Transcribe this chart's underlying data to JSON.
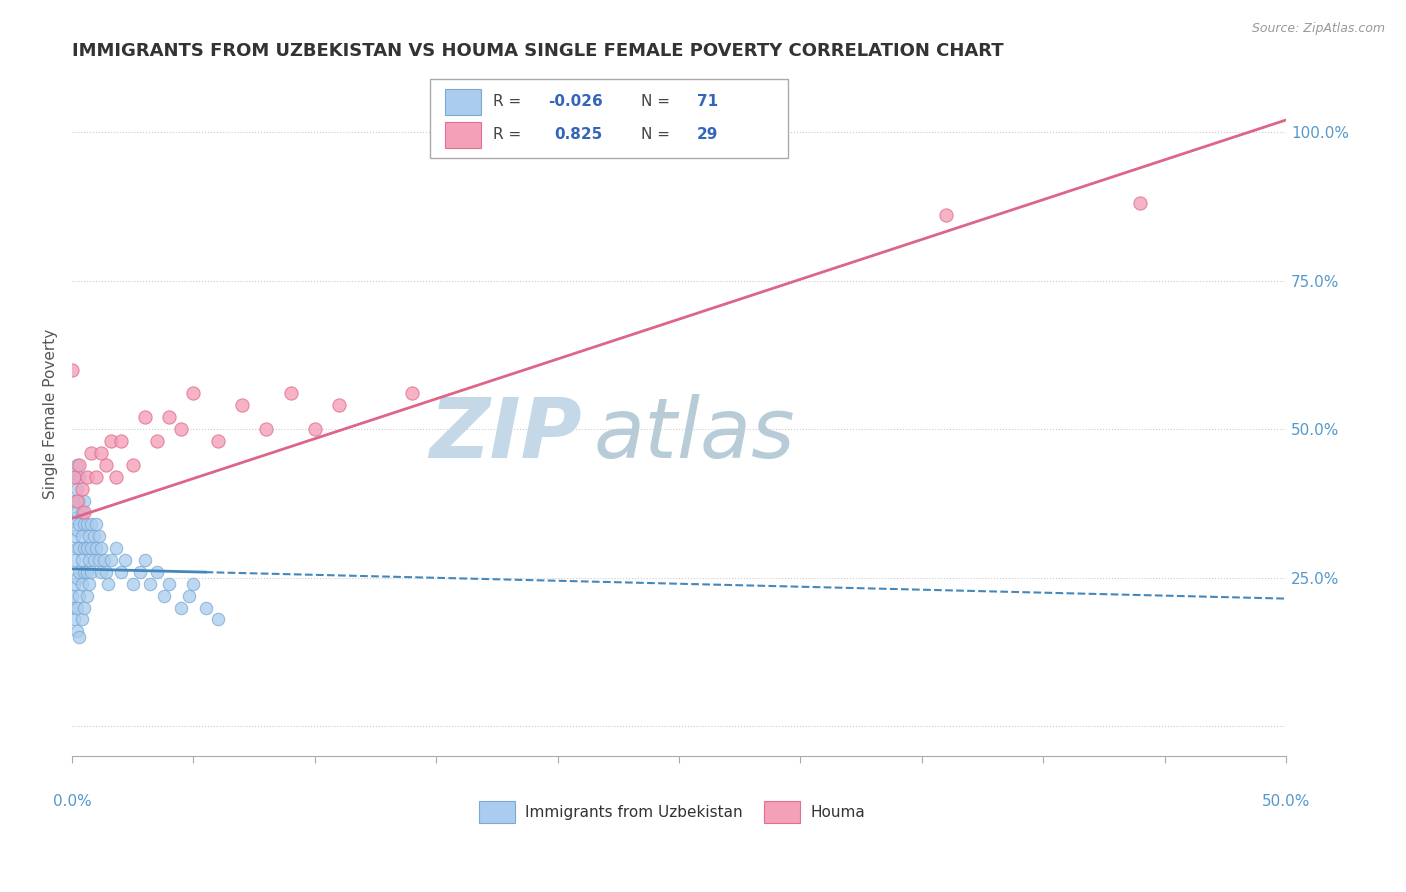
{
  "title": "IMMIGRANTS FROM UZBEKISTAN VS HOUMA SINGLE FEMALE POVERTY CORRELATION CHART",
  "source": "Source: ZipAtlas.com",
  "ylabel": "Single Female Poverty",
  "legend_blue_label": "Immigrants from Uzbekistan",
  "legend_pink_label": "Houma",
  "R_blue": -0.026,
  "N_blue": 71,
  "R_pink": 0.825,
  "N_pink": 29,
  "blue_color": "#aaccee",
  "blue_edge": "#7aaad4",
  "pink_color": "#f4a0b8",
  "pink_edge": "#e07090",
  "blue_line_color": "#4488bb",
  "pink_line_color": "#dd6688",
  "watermark_zip": "ZIP",
  "watermark_atlas": "atlas",
  "watermark_color_zip": "#c5d8e8",
  "watermark_color_atlas": "#b8ccd8",
  "xlim": [
    0.0,
    0.5
  ],
  "ylim": [
    -0.05,
    1.1
  ],
  "right_yticks": [
    0.0,
    0.25,
    0.5,
    0.75,
    1.0
  ],
  "right_yticklabels": [
    "",
    "25.0%",
    "50.0%",
    "75.0%",
    "100.0%"
  ],
  "blue_scatter_x": [
    0.0,
    0.0,
    0.001,
    0.001,
    0.001,
    0.001,
    0.001,
    0.001,
    0.001,
    0.002,
    0.002,
    0.002,
    0.002,
    0.002,
    0.002,
    0.002,
    0.002,
    0.003,
    0.003,
    0.003,
    0.003,
    0.003,
    0.003,
    0.003,
    0.004,
    0.004,
    0.004,
    0.004,
    0.004,
    0.005,
    0.005,
    0.005,
    0.005,
    0.005,
    0.006,
    0.006,
    0.006,
    0.006,
    0.007,
    0.007,
    0.007,
    0.008,
    0.008,
    0.008,
    0.009,
    0.009,
    0.01,
    0.01,
    0.011,
    0.011,
    0.012,
    0.012,
    0.013,
    0.014,
    0.015,
    0.016,
    0.018,
    0.02,
    0.022,
    0.025,
    0.028,
    0.03,
    0.032,
    0.035,
    0.038,
    0.04,
    0.045,
    0.048,
    0.05,
    0.055,
    0.06
  ],
  "blue_scatter_y": [
    0.2,
    0.22,
    0.18,
    0.24,
    0.28,
    0.32,
    0.35,
    0.38,
    0.42,
    0.16,
    0.2,
    0.25,
    0.3,
    0.33,
    0.36,
    0.4,
    0.44,
    0.15,
    0.22,
    0.26,
    0.3,
    0.34,
    0.38,
    0.42,
    0.18,
    0.24,
    0.28,
    0.32,
    0.36,
    0.2,
    0.26,
    0.3,
    0.34,
    0.38,
    0.22,
    0.26,
    0.3,
    0.34,
    0.24,
    0.28,
    0.32,
    0.26,
    0.3,
    0.34,
    0.28,
    0.32,
    0.3,
    0.34,
    0.28,
    0.32,
    0.26,
    0.3,
    0.28,
    0.26,
    0.24,
    0.28,
    0.3,
    0.26,
    0.28,
    0.24,
    0.26,
    0.28,
    0.24,
    0.26,
    0.22,
    0.24,
    0.2,
    0.22,
    0.24,
    0.2,
    0.18
  ],
  "pink_scatter_x": [
    0.0,
    0.001,
    0.002,
    0.003,
    0.004,
    0.005,
    0.006,
    0.008,
    0.01,
    0.012,
    0.014,
    0.016,
    0.018,
    0.02,
    0.025,
    0.03,
    0.035,
    0.04,
    0.045,
    0.05,
    0.06,
    0.07,
    0.08,
    0.09,
    0.1,
    0.11,
    0.14,
    0.36,
    0.44
  ],
  "pink_scatter_y": [
    0.6,
    0.42,
    0.38,
    0.44,
    0.4,
    0.36,
    0.42,
    0.46,
    0.42,
    0.46,
    0.44,
    0.48,
    0.42,
    0.48,
    0.44,
    0.52,
    0.48,
    0.52,
    0.5,
    0.56,
    0.48,
    0.54,
    0.5,
    0.56,
    0.5,
    0.54,
    0.56,
    0.86,
    0.88
  ],
  "pink_line_x0": 0.0,
  "pink_line_y0": 0.35,
  "pink_line_x1": 0.5,
  "pink_line_y1": 1.02,
  "blue_line_x0": 0.0,
  "blue_line_y0": 0.265,
  "blue_line_x1": 0.5,
  "blue_line_y1": 0.215
}
